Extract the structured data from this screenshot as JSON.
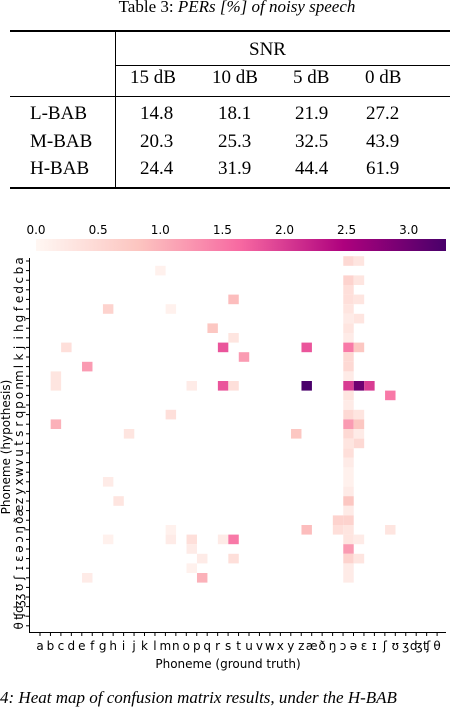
{
  "table": {
    "caption_prefix": "Table 3: ",
    "caption_title": "PERs [%] of noisy speech",
    "group_header": "SNR",
    "columns": [
      "15 dB",
      "10 dB",
      "5 dB",
      "0 dB"
    ],
    "rows": [
      {
        "label": "L-BAB",
        "values": [
          "14.8",
          "18.1",
          "21.9",
          "27.2"
        ]
      },
      {
        "label": "M-BAB",
        "values": [
          "20.3",
          "25.3",
          "32.5",
          "43.9"
        ]
      },
      {
        "label": "H-BAB",
        "values": [
          "24.4",
          "31.9",
          "44.4",
          "61.9"
        ]
      }
    ]
  },
  "chart_data": {
    "type": "heatmap",
    "xlabel": "Phoneme (ground truth)",
    "ylabel": "Phoneme (hypothesis)",
    "colorbar": {
      "ticks": [
        "0.0",
        "0.5",
        "1.0",
        "1.5",
        "2.0",
        "2.5",
        "3.0"
      ],
      "range": [
        0,
        3.3
      ],
      "colormap": "RdPu"
    },
    "x_tick_labels": [
      "a",
      "b",
      "c",
      "d",
      "e",
      "f",
      "g",
      "h",
      "i",
      "j",
      "k",
      "l",
      "m",
      "n",
      "o",
      "p",
      "q",
      "r",
      "s",
      "t",
      "u",
      "v",
      "w",
      "x",
      "y",
      "z",
      "æ",
      "ð",
      "ŋ",
      "ɔ",
      "ə",
      "ɛ",
      "ɪ",
      "ʃ",
      "ʊ",
      "ʒ",
      "ʤ",
      "ʧ",
      "θ"
    ],
    "y_tick_labels": [
      "a",
      "b",
      "c",
      "d",
      "e",
      "f",
      "g",
      "h",
      "i",
      "j",
      "k",
      "l",
      "m",
      "n",
      "o",
      "p",
      "q",
      "r",
      "s",
      "t",
      "u",
      "v",
      "w",
      "x",
      "y",
      "z",
      "æ",
      "ð",
      "ŋ",
      "ɔ",
      "ə",
      "ɛ",
      "ɪ",
      "ʃ",
      "ʊ",
      "ʒ",
      "ʤ",
      "ʧ",
      "θ"
    ],
    "cells": [
      {
        "x": "ə",
        "y": "a",
        "v": 0.5
      },
      {
        "x": "ɛ",
        "y": "a",
        "v": 0.3
      },
      {
        "x": "m",
        "y": "b",
        "v": 0.1
      },
      {
        "x": "ə",
        "y": "c",
        "v": 0.6
      },
      {
        "x": "ɛ",
        "y": "c",
        "v": 0.3
      },
      {
        "x": "ə",
        "y": "d",
        "v": 0.4
      },
      {
        "x": "t",
        "y": "e",
        "v": 0.9
      },
      {
        "x": "ə",
        "y": "e",
        "v": 0.4
      },
      {
        "x": "ɛ",
        "y": "e",
        "v": 0.3
      },
      {
        "x": "h",
        "y": "f",
        "v": 0.6
      },
      {
        "x": "n",
        "y": "f",
        "v": 0.1
      },
      {
        "x": "ə",
        "y": "f",
        "v": 0.3
      },
      {
        "x": "ə",
        "y": "g",
        "v": 0.2
      },
      {
        "x": "ɛ",
        "y": "g",
        "v": 0.3
      },
      {
        "x": "r",
        "y": "h",
        "v": 0.8
      },
      {
        "x": "ə",
        "y": "h",
        "v": 0.3
      },
      {
        "x": "t",
        "y": "i",
        "v": 0.3
      },
      {
        "x": "ə",
        "y": "i",
        "v": 0.2
      },
      {
        "x": "d",
        "y": "j",
        "v": 0.4
      },
      {
        "x": "s",
        "y": "j",
        "v": 1.8
      },
      {
        "x": "æ",
        "y": "j",
        "v": 1.8
      },
      {
        "x": "ə",
        "y": "j",
        "v": 1.5
      },
      {
        "x": "ɛ",
        "y": "j",
        "v": 0.8
      },
      {
        "x": "u",
        "y": "k",
        "v": 1.2
      },
      {
        "x": "ə",
        "y": "k",
        "v": 0.5
      },
      {
        "x": "f",
        "y": "l",
        "v": 1.2
      },
      {
        "x": "ə",
        "y": "l",
        "v": 0.5
      },
      {
        "x": "c",
        "y": "m",
        "v": 0.3
      },
      {
        "x": "ə",
        "y": "m",
        "v": 0.2
      },
      {
        "x": "c",
        "y": "n",
        "v": 0.3
      },
      {
        "x": "p",
        "y": "n",
        "v": 0.2
      },
      {
        "x": "s",
        "y": "n",
        "v": 1.8
      },
      {
        "x": "t",
        "y": "n",
        "v": 0.4
      },
      {
        "x": "æ",
        "y": "n",
        "v": 3.3
      },
      {
        "x": "ə",
        "y": "n",
        "v": 2.0
      },
      {
        "x": "ɛ",
        "y": "n",
        "v": 3.0
      },
      {
        "x": "ɪ",
        "y": "n",
        "v": 2.0
      },
      {
        "x": "ʊ",
        "y": "o",
        "v": 1.5
      },
      {
        "x": "ə",
        "y": "o",
        "v": 0.3
      },
      {
        "x": "ə",
        "y": "p",
        "v": 0.2
      },
      {
        "x": "n",
        "y": "q",
        "v": 0.4
      },
      {
        "x": "ə",
        "y": "q",
        "v": 0.5
      },
      {
        "x": "ɛ",
        "y": "q",
        "v": 0.3
      },
      {
        "x": "c",
        "y": "r",
        "v": 1.0
      },
      {
        "x": "ə",
        "y": "r",
        "v": 1.2
      },
      {
        "x": "ɛ",
        "y": "r",
        "v": 0.8
      },
      {
        "x": "j",
        "y": "s",
        "v": 0.3
      },
      {
        "x": "z",
        "y": "s",
        "v": 0.8
      },
      {
        "x": "ə",
        "y": "s",
        "v": 0.5
      },
      {
        "x": "ɛ",
        "y": "s",
        "v": 0.2
      },
      {
        "x": "ə",
        "y": "t",
        "v": 0.3
      },
      {
        "x": "ɛ",
        "y": "t",
        "v": 0.5
      },
      {
        "x": "ə",
        "y": "u",
        "v": 0.4
      },
      {
        "x": "ə",
        "y": "v",
        "v": 0.2
      },
      {
        "x": "ə",
        "y": "w",
        "v": 0.1
      },
      {
        "x": "h",
        "y": "x",
        "v": 0.2
      },
      {
        "x": "ə",
        "y": "x",
        "v": 0.1
      },
      {
        "x": "ə",
        "y": "y",
        "v": 0.2
      },
      {
        "x": "i",
        "y": "z",
        "v": 0.3
      },
      {
        "x": "ə",
        "y": "z",
        "v": 0.8
      },
      {
        "x": "ə",
        "y": "æ",
        "v": 0.2
      },
      {
        "x": "ɔ",
        "y": "ð",
        "v": 0.6
      },
      {
        "x": "ə",
        "y": "ð",
        "v": 0.6
      },
      {
        "x": "n",
        "y": "ŋ",
        "v": 0.1
      },
      {
        "x": "æ",
        "y": "ŋ",
        "v": 0.9
      },
      {
        "x": "ɔ",
        "y": "ŋ",
        "v": 0.4
      },
      {
        "x": "ʊ",
        "y": "ŋ",
        "v": 0.3
      },
      {
        "x": "ə",
        "y": "ŋ",
        "v": 0.3
      },
      {
        "x": "h",
        "y": "ɔ",
        "v": 0.1
      },
      {
        "x": "n",
        "y": "ɔ",
        "v": 0.2
      },
      {
        "x": "p",
        "y": "ɔ",
        "v": 0.4
      },
      {
        "x": "s",
        "y": "ɔ",
        "v": 0.2
      },
      {
        "x": "t",
        "y": "ɔ",
        "v": 1.5
      },
      {
        "x": "ə",
        "y": "ɔ",
        "v": 0.3
      },
      {
        "x": "ɛ",
        "y": "ɔ",
        "v": 0.2
      },
      {
        "x": "p",
        "y": "ə",
        "v": 0.2
      },
      {
        "x": "ə",
        "y": "ə",
        "v": 1.2
      },
      {
        "x": "q",
        "y": "ɛ",
        "v": 0.2
      },
      {
        "x": "t",
        "y": "ɛ",
        "v": 0.4
      },
      {
        "x": "ə",
        "y": "ɛ",
        "v": 0.6
      },
      {
        "x": "ɛ",
        "y": "ɛ",
        "v": 0.3
      },
      {
        "x": "p",
        "y": "ɪ",
        "v": 0.1
      },
      {
        "x": "ə",
        "y": "ɪ",
        "v": 0.2
      },
      {
        "x": "f",
        "y": "ʃ",
        "v": 0.2
      },
      {
        "x": "q",
        "y": "ʃ",
        "v": 1.0
      },
      {
        "x": "ə",
        "y": "ʃ",
        "v": 0.2
      }
    ]
  },
  "figure_caption": "4: Heat map of confusion matrix results, under the H-BAB"
}
